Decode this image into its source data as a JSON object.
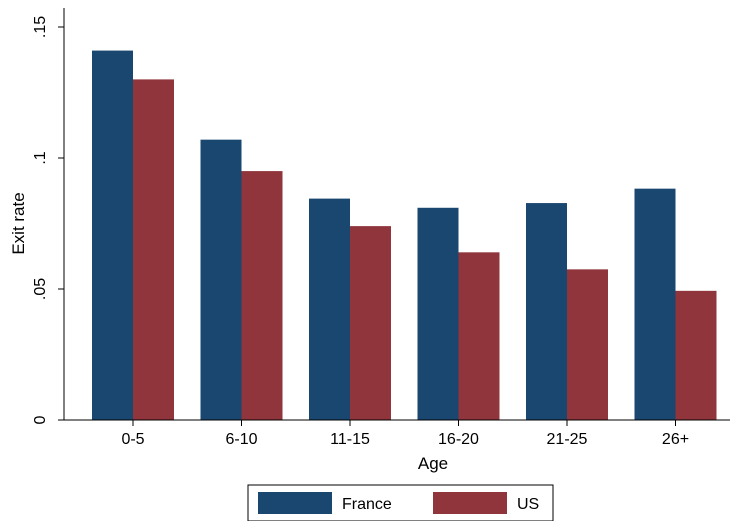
{
  "chart_data": {
    "type": "bar",
    "title": "",
    "xlabel": "Age",
    "ylabel": "Exit rate",
    "categories": [
      "0-5",
      "6-10",
      "11-15",
      "16-20",
      "21-25",
      "26+"
    ],
    "series": [
      {
        "name": "France",
        "color": "#1a476f",
        "values": [
          0.141,
          0.107,
          0.0845,
          0.081,
          0.0828,
          0.0883
        ]
      },
      {
        "name": "US",
        "color": "#90353b",
        "values": [
          0.13,
          0.095,
          0.074,
          0.064,
          0.0575,
          0.0493
        ]
      }
    ],
    "ylim": [
      0,
      0.15
    ],
    "yticks": [
      {
        "value": 0,
        "label": "0"
      },
      {
        "value": 0.05,
        "label": ".05"
      },
      {
        "value": 0.1,
        "label": ".1"
      },
      {
        "value": 0.15,
        "label": ".15"
      }
    ],
    "grid": false,
    "legend": {
      "position": "bottom"
    }
  }
}
